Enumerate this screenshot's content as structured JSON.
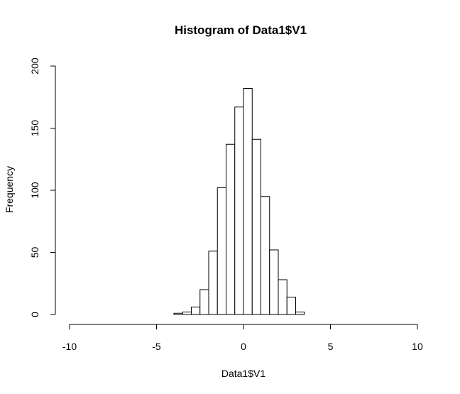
{
  "chart_data": {
    "type": "bar",
    "title": "Histogram of Data1$V1",
    "xlabel": "Data1$V1",
    "ylabel": "Frequency",
    "xlim": [
      -10,
      10
    ],
    "ylim": [
      0,
      200
    ],
    "x_ticks": [
      -10,
      -5,
      0,
      5,
      10
    ],
    "y_ticks": [
      0,
      50,
      100,
      150,
      200
    ],
    "bin_width": 0.5,
    "bins": [
      {
        "start": -4.0,
        "end": -3.5,
        "count": 1
      },
      {
        "start": -3.5,
        "end": -3.0,
        "count": 2
      },
      {
        "start": -3.0,
        "end": -2.5,
        "count": 6
      },
      {
        "start": -2.5,
        "end": -2.0,
        "count": 20
      },
      {
        "start": -2.0,
        "end": -1.5,
        "count": 51
      },
      {
        "start": -1.5,
        "end": -1.0,
        "count": 102
      },
      {
        "start": -1.0,
        "end": -0.5,
        "count": 137
      },
      {
        "start": -0.5,
        "end": 0.0,
        "count": 167
      },
      {
        "start": 0.0,
        "end": 0.5,
        "count": 182
      },
      {
        "start": 0.5,
        "end": 1.0,
        "count": 141
      },
      {
        "start": 1.0,
        "end": 1.5,
        "count": 95
      },
      {
        "start": 1.5,
        "end": 2.0,
        "count": 52
      },
      {
        "start": 2.0,
        "end": 2.5,
        "count": 28
      },
      {
        "start": 2.5,
        "end": 3.0,
        "count": 14
      },
      {
        "start": 3.0,
        "end": 3.5,
        "count": 2
      }
    ],
    "grid": false,
    "legend": false
  }
}
